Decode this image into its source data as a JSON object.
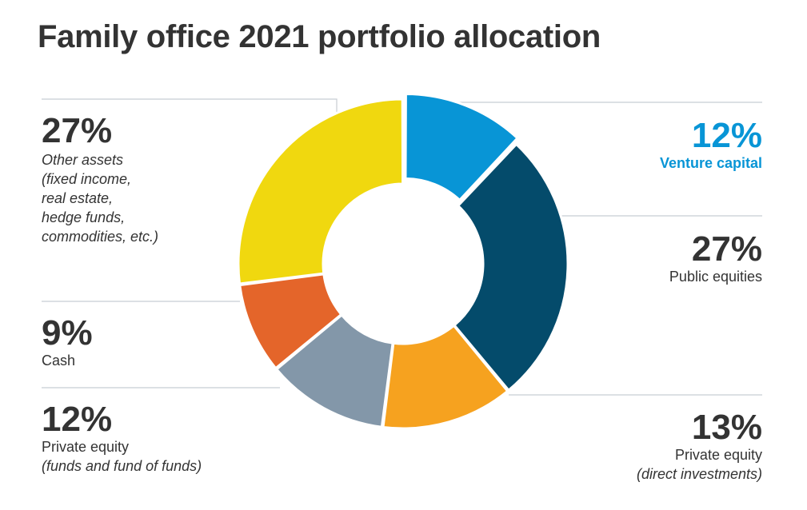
{
  "title": "Family office 2021 portfolio allocation",
  "colors": {
    "venture_capital": "#0895d6",
    "public_equities": "#044b6b",
    "pe_direct": "#f6a21f",
    "pe_funds": "#8397a9",
    "cash": "#e4652a",
    "other": "#f0d80f"
  },
  "chart_data": {
    "type": "pie",
    "variant": "donut",
    "title": "Family office 2021 portfolio allocation",
    "unit": "%",
    "slices": [
      {
        "name": "Venture capital",
        "value": 12,
        "label": "12%",
        "desc": "",
        "color": "#0895d6",
        "exploded": true
      },
      {
        "name": "Public equities",
        "value": 27,
        "label": "27%",
        "desc": "",
        "color": "#044b6b"
      },
      {
        "name": "Private equity",
        "value": 13,
        "label": "13%",
        "desc": "(direct investments)",
        "color": "#f6a21f"
      },
      {
        "name": "Private equity",
        "value": 12,
        "label": "12%",
        "desc": "(funds and fund of funds)",
        "color": "#8397a9"
      },
      {
        "name": "Cash",
        "value": 9,
        "label": "9%",
        "desc": "",
        "color": "#e4652a"
      },
      {
        "name": "Other assets",
        "value": 27,
        "label": "27%",
        "desc": "(fixed income,\nreal estate,\nhedge funds,\ncommodities, etc.)",
        "color": "#f0d80f"
      }
    ]
  }
}
